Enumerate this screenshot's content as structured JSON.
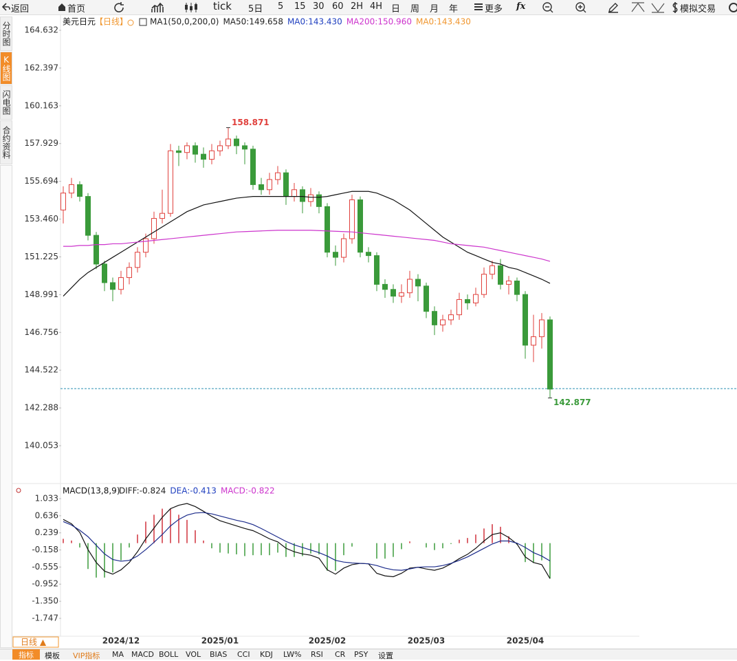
{
  "toolbar": [
    "返回",
    "首页",
    "tick",
    "5日",
    "5",
    "15",
    "30",
    "60",
    "2H",
    "4H",
    "日",
    "周",
    "月",
    "年",
    "更多",
    "fx",
    "模拟交易"
  ],
  "sidebar": [
    "分时图",
    "K线图",
    "闪电图",
    "合约资料"
  ],
  "period_button": "日线 ▲",
  "tabs": [
    "指标",
    "模板",
    "VIP指标",
    "MA",
    "MACD",
    "BOLL",
    "VOL",
    "BIAS",
    "CCI",
    "KDJ",
    "LW%",
    "RSI",
    "CR",
    "PSY",
    "设置"
  ],
  "chart_data": [
    {
      "type": "candlestick",
      "title": "美元日元",
      "period": "【日线】",
      "legend": [
        {
          "text": "MA1(50,0,200,0)",
          "color": "#222222"
        },
        {
          "text": "MA50:149.658",
          "color": "#222222"
        },
        {
          "text": "MA0:143.430",
          "color": "#1f3fbf"
        },
        {
          "text": "MA200:150.960",
          "color": "#cc33cc"
        },
        {
          "text": "MA0:143.430",
          "color": "#f0962e"
        }
      ],
      "categories": [
        null,
        null,
        null,
        null,
        null,
        null,
        null,
        "2024/12",
        null,
        null,
        null,
        null,
        null,
        null,
        null,
        null,
        null,
        null,
        null,
        "2025/01",
        null,
        null,
        null,
        null,
        null,
        null,
        null,
        null,
        null,
        null,
        null,
        null,
        "2025/02",
        null,
        null,
        null,
        null,
        null,
        null,
        null,
        null,
        null,
        null,
        null,
        "2025/03",
        null,
        null,
        null,
        null,
        null,
        null,
        null,
        null,
        null,
        null,
        null,
        "2025/04",
        null,
        null,
        null
      ],
      "open": [
        154.0,
        155.0,
        155.5,
        154.8,
        152.5,
        150.8,
        149.7,
        149.3,
        150.0,
        150.6,
        151.5,
        152.3,
        153.5,
        153.8,
        157.5,
        157.4,
        157.8,
        157.3,
        157.0,
        157.5,
        157.8,
        158.2,
        157.8,
        157.6,
        155.5,
        155.2,
        155.8,
        156.2,
        154.8,
        155.2,
        154.5,
        154.9,
        154.2,
        151.5,
        151.2,
        152.3,
        154.6,
        151.5,
        151.3,
        149.6,
        149.3,
        148.9,
        149.1,
        149.9,
        149.5,
        148.0,
        147.2,
        147.5,
        147.8,
        148.7,
        148.5,
        149.0,
        150.2,
        150.7,
        149.6,
        149.8,
        149.0,
        146.0,
        146.5,
        147.5
      ],
      "high": [
        155.4,
        155.9,
        155.7,
        155.0,
        152.7,
        151.0,
        150.0,
        150.4,
        150.9,
        151.8,
        152.6,
        153.9,
        155.2,
        157.9,
        157.8,
        158.0,
        158.0,
        157.7,
        157.9,
        158.1,
        158.871,
        158.4,
        158.0,
        157.8,
        155.9,
        156.2,
        156.6,
        156.4,
        155.6,
        155.4,
        155.3,
        155.1,
        154.4,
        151.9,
        152.6,
        154.9,
        154.8,
        151.8,
        151.5,
        149.9,
        149.6,
        149.6,
        150.4,
        150.2,
        149.7,
        148.3,
        147.8,
        148.1,
        149.1,
        149.0,
        149.4,
        150.6,
        151.0,
        151.1,
        150.1,
        150.0,
        149.2,
        147.8,
        147.9,
        147.7
      ],
      "low": [
        153.2,
        154.7,
        154.5,
        152.2,
        150.5,
        149.2,
        148.6,
        149.0,
        149.6,
        150.3,
        151.2,
        152.0,
        153.2,
        153.6,
        156.6,
        157.0,
        156.8,
        156.5,
        156.7,
        157.2,
        157.6,
        157.3,
        156.7,
        155.2,
        154.9,
        154.9,
        155.5,
        154.3,
        154.5,
        153.8,
        154.2,
        153.8,
        151.2,
        150.7,
        150.9,
        152.0,
        151.2,
        150.9,
        149.2,
        148.8,
        148.5,
        148.5,
        148.8,
        148.6,
        147.6,
        146.6,
        146.8,
        147.2,
        147.5,
        148.1,
        148.3,
        148.8,
        149.9,
        149.3,
        149.0,
        148.6,
        145.2,
        145.0,
        145.8,
        142.877
      ],
      "close": [
        155.0,
        155.5,
        154.8,
        152.5,
        150.8,
        149.7,
        149.3,
        150.0,
        150.6,
        151.5,
        152.3,
        153.5,
        153.8,
        157.5,
        157.4,
        157.8,
        157.3,
        157.0,
        157.5,
        157.8,
        158.2,
        157.8,
        157.6,
        155.5,
        155.2,
        155.8,
        156.2,
        154.8,
        155.2,
        154.5,
        154.9,
        154.2,
        151.5,
        151.2,
        152.3,
        154.6,
        151.5,
        151.3,
        149.6,
        149.3,
        148.9,
        149.1,
        149.9,
        149.5,
        148.0,
        147.2,
        147.5,
        147.8,
        148.7,
        148.5,
        149.0,
        150.2,
        150.7,
        149.6,
        149.8,
        149.0,
        146.0,
        146.5,
        147.5,
        143.4
      ],
      "up_color": "#e0403c",
      "down_color": "#3a9a3a",
      "series": [
        {
          "color": "#111111",
          "values": [
            148.9,
            149.4,
            149.9,
            150.3,
            150.6,
            150.9,
            151.2,
            151.5,
            151.8,
            152.1,
            152.4,
            152.7,
            153.0,
            153.3,
            153.6,
            153.9,
            154.1,
            154.3,
            154.4,
            154.5,
            154.6,
            154.7,
            154.75,
            154.8,
            154.8,
            154.8,
            154.8,
            154.8,
            154.8,
            154.8,
            154.75,
            154.75,
            154.8,
            154.9,
            155.0,
            155.1,
            155.1,
            155.1,
            155.0,
            154.8,
            154.6,
            154.3,
            154.0,
            153.6,
            153.2,
            152.8,
            152.4,
            152.1,
            151.8,
            151.5,
            151.3,
            151.1,
            150.9,
            150.8,
            150.6,
            150.5,
            150.3,
            150.1,
            149.9,
            149.658
          ]
        },
        {
          "color": "#cc33cc",
          "values": [
            151.85,
            151.85,
            151.9,
            151.9,
            151.95,
            151.95,
            152.0,
            152.0,
            152.05,
            152.1,
            152.15,
            152.2,
            152.25,
            152.3,
            152.35,
            152.4,
            152.45,
            152.5,
            152.55,
            152.6,
            152.65,
            152.7,
            152.72,
            152.74,
            152.76,
            152.78,
            152.8,
            152.8,
            152.8,
            152.8,
            152.8,
            152.78,
            152.76,
            152.74,
            152.72,
            152.7,
            152.65,
            152.6,
            152.55,
            152.5,
            152.45,
            152.4,
            152.35,
            152.3,
            152.25,
            152.2,
            152.1,
            152.0,
            151.95,
            151.9,
            151.85,
            151.8,
            151.7,
            151.6,
            151.5,
            151.4,
            151.3,
            151.2,
            151.1,
            150.96
          ]
        }
      ],
      "last_price": 143.43,
      "last_price_color": "#2a8fb0",
      "ylim": [
        137.937,
        165.527
      ],
      "yticks": [
        164.632,
        162.397,
        160.163,
        157.929,
        155.694,
        {
          "value": 153.46,
          "label": "153.460"
        },
        151.225,
        148.991,
        146.756,
        144.522,
        142.288,
        140.053
      ]
    },
    {
      "type": "macd",
      "title": "MACD(13,8,9)",
      "legend": [
        {
          "text": "DIFF:-0.824",
          "color": "#222222"
        },
        {
          "text": "DEA:-0.413",
          "color": "#1f3fbf"
        },
        {
          "text": "MACD:-0.822",
          "color": "#cc33cc"
        }
      ],
      "series": [
        {
          "color": "#111111",
          "values": [
            0.55,
            0.45,
            0.25,
            -0.15,
            -0.45,
            -0.65,
            -0.72,
            -0.62,
            -0.45,
            -0.2,
            0.1,
            0.35,
            0.6,
            0.8,
            0.88,
            0.92,
            0.85,
            0.74,
            0.62,
            0.52,
            0.46,
            0.4,
            0.34,
            0.29,
            0.2,
            0.1,
            0.03,
            -0.12,
            -0.2,
            -0.25,
            -0.28,
            -0.35,
            -0.62,
            -0.72,
            -0.58,
            -0.5,
            -0.47,
            -0.48,
            -0.7,
            -0.76,
            -0.78,
            -0.7,
            -0.58,
            -0.56,
            -0.6,
            -0.63,
            -0.58,
            -0.48,
            -0.36,
            -0.26,
            -0.12,
            0.05,
            0.2,
            0.24,
            0.13,
            -0.02,
            -0.32,
            -0.45,
            -0.5,
            -0.824
          ]
        },
        {
          "color": "#1a2a8a",
          "values": [
            0.5,
            0.42,
            0.3,
            0.15,
            -0.05,
            -0.25,
            -0.38,
            -0.42,
            -0.4,
            -0.3,
            -0.15,
            0.02,
            0.2,
            0.4,
            0.55,
            0.65,
            0.7,
            0.71,
            0.68,
            0.63,
            0.58,
            0.53,
            0.49,
            0.43,
            0.34,
            0.24,
            0.14,
            0.04,
            -0.04,
            -0.1,
            -0.16,
            -0.22,
            -0.3,
            -0.4,
            -0.44,
            -0.46,
            -0.47,
            -0.48,
            -0.52,
            -0.58,
            -0.62,
            -0.63,
            -0.6,
            -0.56,
            -0.55,
            -0.55,
            -0.52,
            -0.47,
            -0.4,
            -0.32,
            -0.22,
            -0.12,
            -0.02,
            0.05,
            0.05,
            0.0,
            -0.1,
            -0.22,
            -0.3,
            -0.413
          ]
        }
      ],
      "histogram": [
        0.1,
        0.06,
        -0.1,
        -0.6,
        -0.8,
        -0.8,
        -0.68,
        -0.4,
        -0.1,
        0.2,
        0.5,
        0.66,
        0.8,
        0.8,
        0.66,
        0.54,
        0.3,
        0.06,
        -0.12,
        -0.22,
        -0.24,
        -0.26,
        -0.3,
        -0.28,
        -0.28,
        -0.28,
        -0.22,
        -0.32,
        -0.32,
        -0.3,
        -0.24,
        -0.26,
        -0.64,
        -0.64,
        -0.28,
        -0.08,
        0.0,
        0.0,
        -0.36,
        -0.36,
        -0.32,
        -0.14,
        0.04,
        0.0,
        -0.1,
        -0.16,
        -0.12,
        -0.02,
        0.08,
        0.12,
        0.2,
        0.34,
        0.44,
        0.38,
        0.16,
        -0.04,
        -0.44,
        -0.46,
        -0.4,
        -0.822
      ],
      "up_color": "#d0303a",
      "down_color": "#3a9a3a",
      "ylim": [
        -2.162,
        1.352
      ],
      "yticks": [
        1.033,
        0.636,
        0.239,
        -0.158,
        -0.555,
        -0.952,
        {
          "value": -1.35,
          "label": "-1.350"
        },
        -1.747
      ]
    }
  ]
}
